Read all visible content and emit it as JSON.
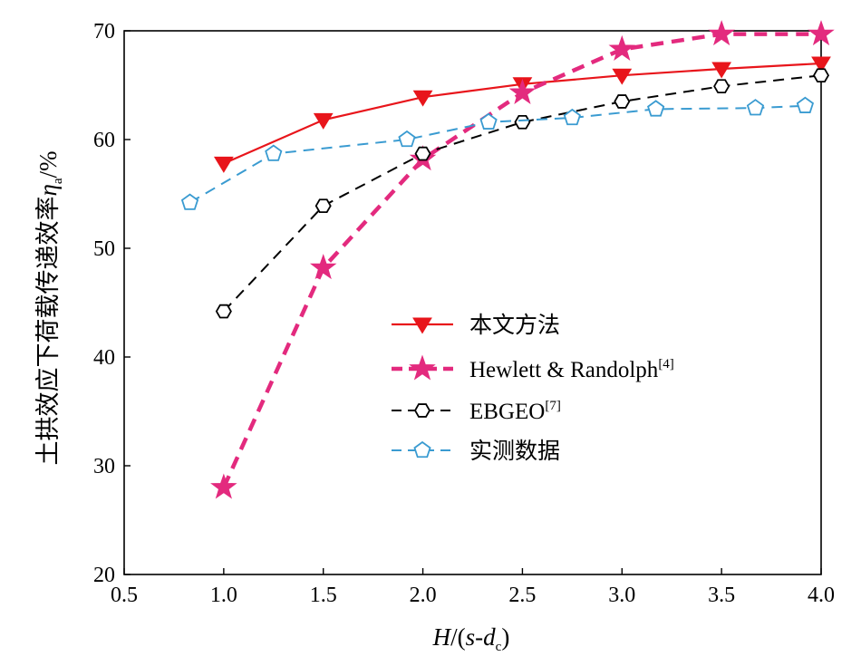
{
  "chart_data": {
    "type": "line",
    "xlabel": {
      "italic_main": "H",
      "mid": "/(",
      "italic_s": "s",
      "dash": "-",
      "italic_d": "d",
      "sub": "c",
      "close": ")"
    },
    "ylabel": {
      "main": "土拱效应下荷载传递效率",
      "italic_symbol": "η",
      "sub": "a",
      "unit": "/%"
    },
    "xlim": [
      0.5,
      4.0
    ],
    "ylim": [
      20,
      70
    ],
    "x_ticks": [
      "0.5",
      "1.0",
      "1.5",
      "2.0",
      "2.5",
      "3.0",
      "3.5",
      "4.0"
    ],
    "y_ticks": [
      "20",
      "30",
      "40",
      "50",
      "60",
      "70"
    ],
    "legend_position": "center-right",
    "series": [
      {
        "name": "本文方法",
        "sup": "",
        "color": "#e8151b",
        "marker": "triangle-down",
        "dash": "solid",
        "x": [
          1.0,
          1.5,
          2.0,
          2.5,
          3.0,
          3.5,
          4.0
        ],
        "y": [
          57.8,
          61.8,
          63.9,
          65.1,
          65.9,
          66.5,
          67.0
        ]
      },
      {
        "name": "Hewlett & Randolph",
        "sup": "[4]",
        "color": "#e32a7e",
        "marker": "star",
        "dash": "dashed-thick",
        "x": [
          1.0,
          1.5,
          2.0,
          2.5,
          3.0,
          3.5,
          4.0
        ],
        "y": [
          28.0,
          48.2,
          58.2,
          64.3,
          68.3,
          69.7,
          69.7
        ]
      },
      {
        "name": "EBGEO",
        "sup": "[7]",
        "color": "#000000",
        "marker": "hexagon",
        "dash": "dashed",
        "x": [
          1.0,
          1.5,
          2.0,
          2.5,
          3.0,
          3.5,
          4.0
        ],
        "y": [
          44.2,
          53.9,
          58.7,
          61.6,
          63.5,
          64.9,
          65.9
        ]
      },
      {
        "name": "实测数据",
        "sup": "",
        "color": "#3a9bd1",
        "marker": "pentagon",
        "dash": "dashed",
        "x": [
          0.83,
          1.25,
          1.92,
          2.33,
          2.75,
          3.17,
          3.67,
          3.92
        ],
        "y": [
          54.2,
          58.7,
          60.0,
          61.6,
          62.0,
          62.8,
          62.9,
          63.1
        ]
      }
    ]
  }
}
